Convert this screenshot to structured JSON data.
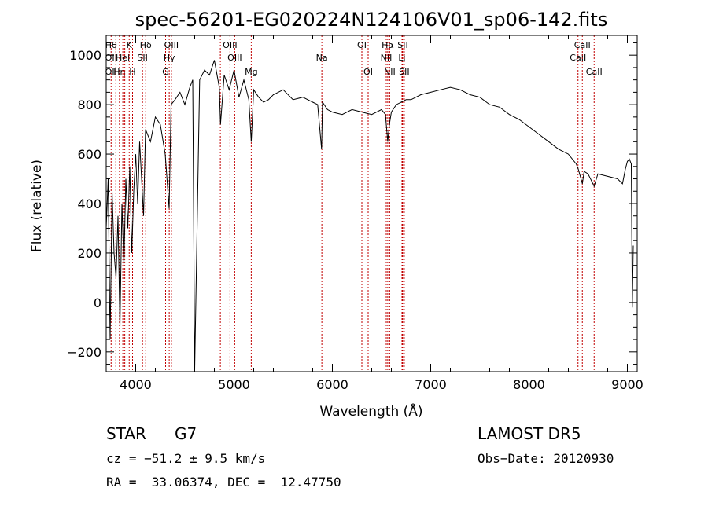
{
  "chart_data": {
    "type": "line",
    "title": "spec-56201-EG020224N124106V01_sp06-142.fits",
    "xlabel": "Wavelength (Å)",
    "ylabel": "Flux (relative)",
    "xlim": [
      3700,
      9100
    ],
    "ylim": [
      -280,
      1080
    ],
    "xticks": [
      4000,
      5000,
      6000,
      7000,
      8000,
      9000
    ],
    "yticks": [
      -200,
      0,
      200,
      400,
      600,
      800,
      1000
    ],
    "grid": false,
    "series": [
      {
        "x": [
          3700,
          3720,
          3740,
          3760,
          3780,
          3800,
          3820,
          3840,
          3860,
          3880,
          3900,
          3920,
          3940,
          3960,
          3980,
          4000,
          4020,
          4040,
          4060,
          4080,
          4100,
          4150,
          4200,
          4250,
          4300,
          4340,
          4360,
          4400,
          4450,
          4500,
          4550,
          4580,
          4600,
          4650,
          4700,
          4750,
          4800,
          4850,
          4862,
          4900,
          4950,
          5000,
          5050,
          5100,
          5150,
          5175,
          5200,
          5250,
          5300,
          5350,
          5400,
          5500,
          5600,
          5700,
          5800,
          5850,
          5890,
          5900,
          5950,
          6000,
          6100,
          6200,
          6300,
          6400,
          6500,
          6540,
          6563,
          6580,
          6600,
          6650,
          6700,
          6750,
          6800,
          6900,
          7000,
          7100,
          7200,
          7300,
          7400,
          7500,
          7600,
          7700,
          7800,
          7900,
          8000,
          8100,
          8200,
          8300,
          8400,
          8480,
          8500,
          8542,
          8560,
          8600,
          8662,
          8700,
          8800,
          8900,
          8950,
          8980,
          9000,
          9020,
          9040,
          9050,
          9060
        ],
        "y": [
          300,
          500,
          -150,
          450,
          200,
          100,
          350,
          -100,
          400,
          150,
          500,
          300,
          550,
          200,
          450,
          600,
          400,
          650,
          500,
          350,
          700,
          650,
          750,
          720,
          600,
          380,
          800,
          820,
          850,
          800,
          870,
          900,
          -270,
          900,
          940,
          920,
          980,
          870,
          720,
          920,
          860,
          940,
          830,
          900,
          820,
          650,
          860,
          830,
          810,
          820,
          840,
          860,
          820,
          830,
          810,
          800,
          620,
          810,
          780,
          770,
          760,
          780,
          770,
          760,
          780,
          760,
          650,
          720,
          770,
          800,
          810,
          820,
          820,
          840,
          850,
          860,
          870,
          860,
          840,
          830,
          800,
          790,
          760,
          740,
          710,
          680,
          650,
          620,
          600,
          560,
          540,
          480,
          530,
          520,
          470,
          520,
          510,
          500,
          480,
          540,
          570,
          580,
          560,
          -20,
          230
        ]
      }
    ],
    "line_markers": [
      {
        "wl": 3750,
        "labels": [
          "Hθ",
          "OII",
          "OII"
        ]
      },
      {
        "wl": 3798,
        "labels": [
          ""
        ]
      },
      {
        "wl": 3835,
        "labels": [
          "",
          "",
          "Hη"
        ]
      },
      {
        "wl": 3869,
        "labels": [
          "",
          "HeI"
        ]
      },
      {
        "wl": 3889,
        "labels": [
          ""
        ]
      },
      {
        "wl": 3934,
        "labels": [
          "K"
        ]
      },
      {
        "wl": 3968,
        "labels": [
          "",
          "",
          "H"
        ]
      },
      {
        "wl": 4069,
        "labels": [
          "",
          "SII"
        ]
      },
      {
        "wl": 4102,
        "labels": [
          "Hδ"
        ]
      },
      {
        "wl": 4304,
        "labels": [
          "",
          "",
          "G"
        ]
      },
      {
        "wl": 4341,
        "labels": [
          "",
          "Hγ"
        ]
      },
      {
        "wl": 4363,
        "labels": [
          "OIII"
        ]
      },
      {
        "wl": 4861,
        "labels": [
          ""
        ]
      },
      {
        "wl": 4959,
        "labels": [
          "OIII"
        ]
      },
      {
        "wl": 5007,
        "labels": [
          "",
          "OIII"
        ]
      },
      {
        "wl": 5175,
        "labels": [
          "",
          "",
          "Mg"
        ]
      },
      {
        "wl": 5893,
        "labels": [
          "",
          "Na"
        ]
      },
      {
        "wl": 6300,
        "labels": [
          "OI"
        ]
      },
      {
        "wl": 6364,
        "labels": [
          "",
          "",
          "OI"
        ]
      },
      {
        "wl": 6548,
        "labels": [
          "",
          "NII"
        ]
      },
      {
        "wl": 6563,
        "labels": [
          "Hα"
        ]
      },
      {
        "wl": 6583,
        "labels": [
          "",
          "",
          "NII"
        ]
      },
      {
        "wl": 6708,
        "labels": [
          "",
          "Li"
        ]
      },
      {
        "wl": 6716,
        "labels": [
          "SII"
        ]
      },
      {
        "wl": 6731,
        "labels": [
          "",
          "",
          "SII"
        ]
      },
      {
        "wl": 8498,
        "labels": [
          "",
          "CaII"
        ]
      },
      {
        "wl": 8542,
        "labels": [
          "CaII"
        ]
      },
      {
        "wl": 8662,
        "labels": [
          "",
          "",
          "CaII"
        ]
      }
    ]
  },
  "info": {
    "object_class": "STAR",
    "subclass": "G7",
    "survey": "LAMOST DR5",
    "cz_line": "cz = −51.2 ± 9.5 km/s",
    "obs_date_line": "Obs−Date: 20120930",
    "coords_line": "RA =  33.06374, DEC =  12.47750"
  }
}
